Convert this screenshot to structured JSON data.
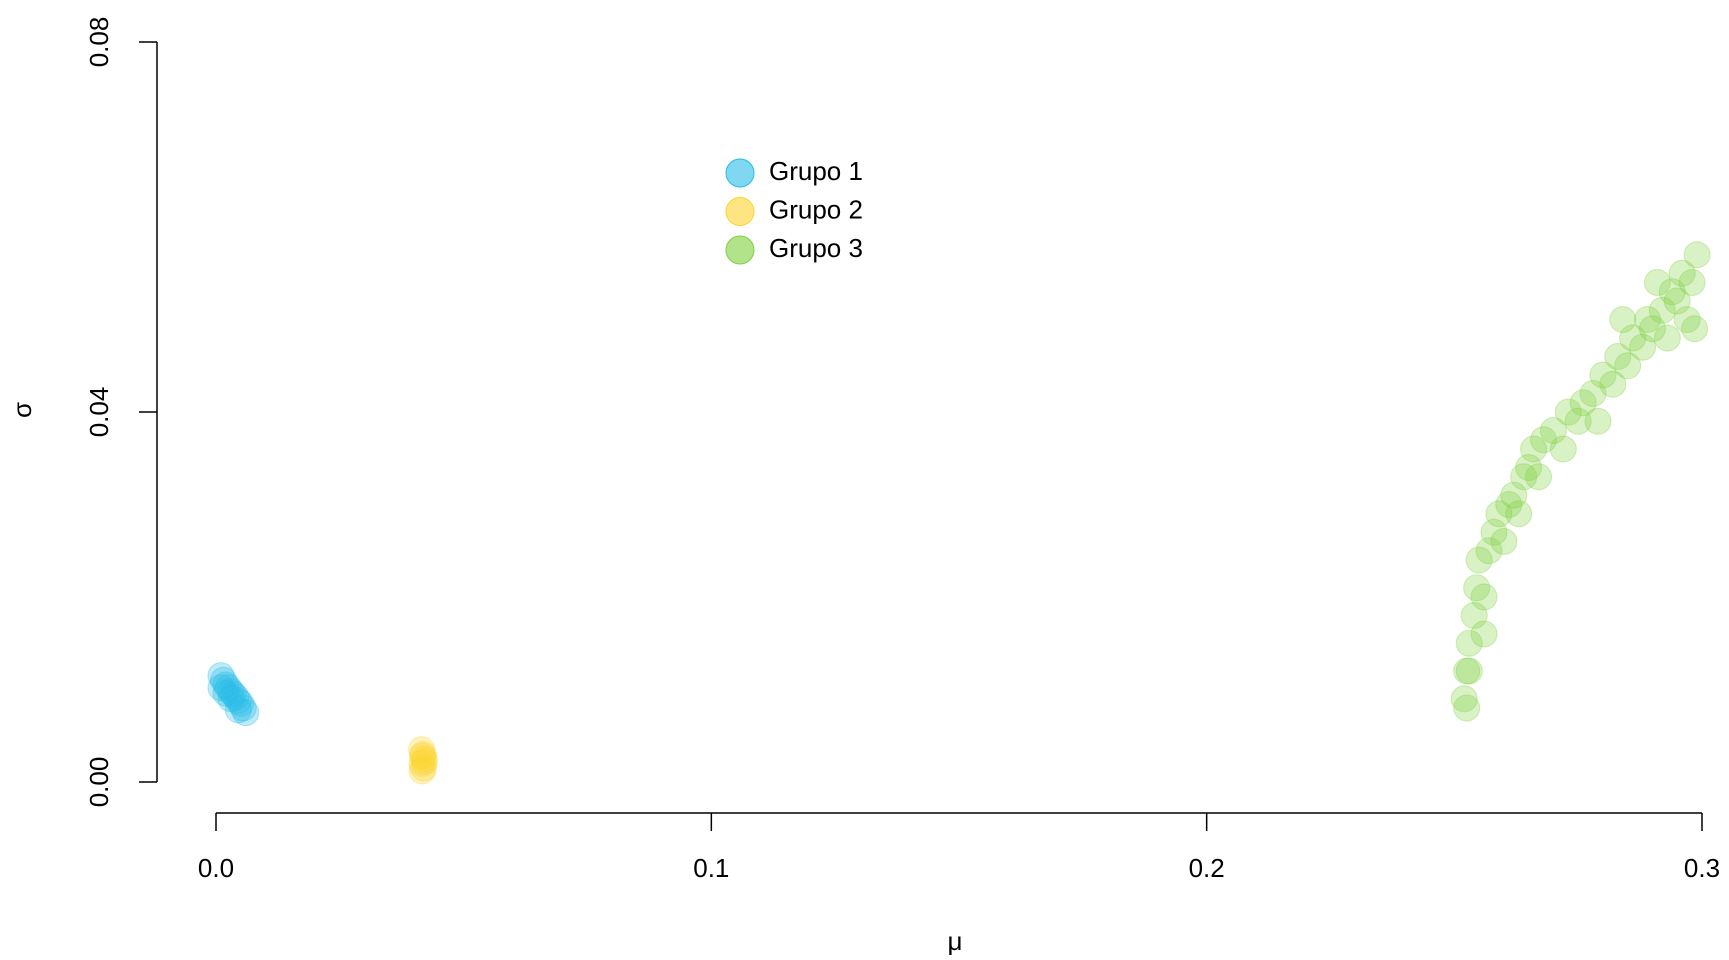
{
  "chart_data": {
    "type": "scatter",
    "x_label": "μ",
    "y_label": "σ",
    "xlim": [
      0,
      0.3
    ],
    "ylim": [
      0,
      0.08
    ],
    "xticks": [
      {
        "value": 0,
        "label": "0.0"
      },
      0.1,
      0.2,
      0.3
    ],
    "yticks": [
      {
        "value": 0,
        "label": "0.00"
      },
      {
        "value": 0.04,
        "label": "0.04"
      },
      {
        "value": 0.08,
        "label": "0.08"
      }
    ],
    "series": [
      {
        "name": "Grupo 1",
        "color": "#29bce8",
        "x": [
          0.001,
          0.0015,
          0.002,
          0.0025,
          0.003,
          0.0035,
          0.004,
          0.0045,
          0.005,
          0.0055,
          0.006,
          0.001,
          0.002,
          0.003,
          0.0045
        ],
        "values": [
          0.0115,
          0.011,
          0.0105,
          0.0102,
          0.0098,
          0.0095,
          0.0092,
          0.0088,
          0.0085,
          0.008,
          0.0075,
          0.0102,
          0.0096,
          0.009,
          0.0078
        ]
      },
      {
        "name": "Grupo 2",
        "color": "#fdd32e",
        "x": [
          0.0415,
          0.0418,
          0.042,
          0.0416,
          0.0419,
          0.0417,
          0.0421,
          0.0416
        ],
        "values": [
          0.0035,
          0.003,
          0.0025,
          0.002,
          0.0015,
          0.0028,
          0.0022,
          0.0012
        ]
      },
      {
        "name": "Grupo 3",
        "color": "#7fd03e",
        "x": [
          0.252,
          0.2525,
          0.253,
          0.254,
          0.2545,
          0.255,
          0.256,
          0.257,
          0.258,
          0.259,
          0.26,
          0.261,
          0.262,
          0.263,
          0.264,
          0.265,
          0.266,
          0.267,
          0.268,
          0.27,
          0.272,
          0.273,
          0.275,
          0.276,
          0.278,
          0.279,
          0.28,
          0.282,
          0.283,
          0.285,
          0.286,
          0.288,
          0.289,
          0.29,
          0.292,
          0.293,
          0.294,
          0.295,
          0.296,
          0.297,
          0.298,
          0.299,
          0.2985,
          0.291,
          0.284,
          0.256,
          0.253,
          0.2525
        ],
        "values": [
          0.009,
          0.012,
          0.015,
          0.018,
          0.021,
          0.024,
          0.02,
          0.025,
          0.027,
          0.029,
          0.026,
          0.03,
          0.031,
          0.029,
          0.033,
          0.034,
          0.036,
          0.033,
          0.037,
          0.038,
          0.036,
          0.04,
          0.039,
          0.041,
          0.042,
          0.039,
          0.044,
          0.043,
          0.046,
          0.045,
          0.048,
          0.047,
          0.05,
          0.049,
          0.051,
          0.048,
          0.053,
          0.052,
          0.055,
          0.05,
          0.054,
          0.057,
          0.049,
          0.054,
          0.05,
          0.016,
          0.012,
          0.008
        ]
      }
    ]
  }
}
